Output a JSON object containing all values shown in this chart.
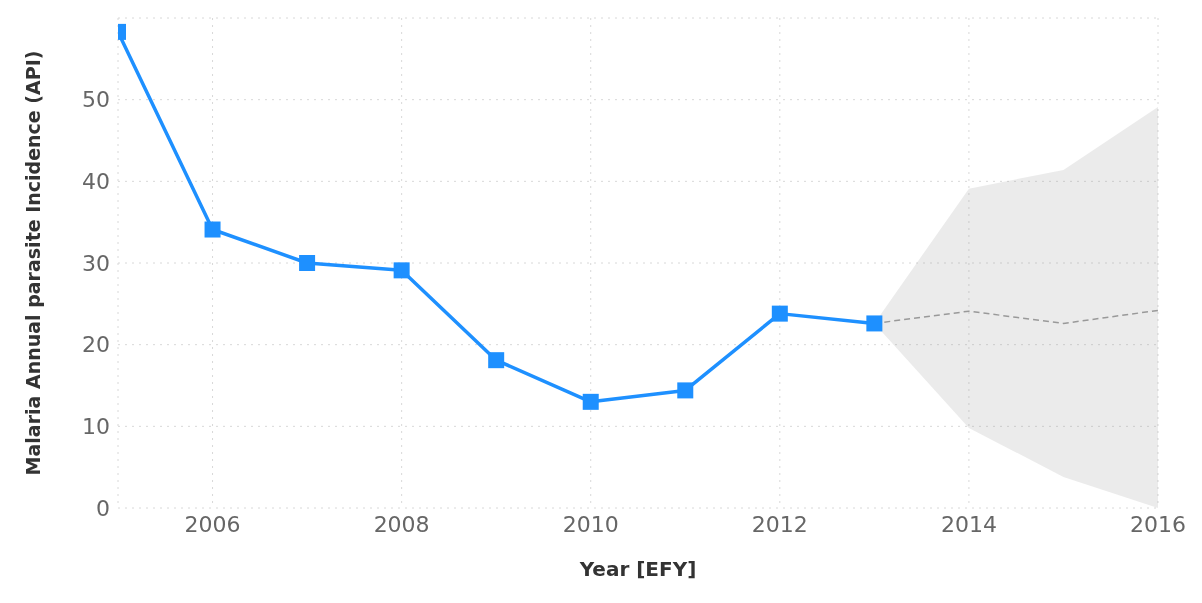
{
  "chart_data": {
    "type": "line",
    "xlabel": "Year [EFY]",
    "ylabel": "Malaria Annual parasite Incidence (API)",
    "xlim": [
      2005,
      2016
    ],
    "xticks": [
      2006,
      2008,
      2010,
      2012,
      2014,
      2016
    ],
    "ylim": [
      0,
      60
    ],
    "yticks": [
      0,
      10,
      20,
      30,
      40,
      50
    ],
    "grid": true,
    "series": [
      {
        "color": "#1e90ff",
        "marker": "square",
        "line_style": "solid",
        "x": [
          2005,
          2006,
          2007,
          2008,
          2009,
          2010,
          2011,
          2012,
          2013
        ],
        "values": [
          58.3,
          34.1,
          30.0,
          29.1,
          18.1,
          13.0,
          14.4,
          23.8,
          22.6
        ]
      },
      {
        "color": "#999999",
        "marker": "none",
        "line_style": "dashed",
        "x": [
          2013,
          2014,
          2015,
          2016
        ],
        "values": [
          22.6,
          24.1,
          22.6,
          24.2
        ],
        "lower": [
          22.6,
          9.8,
          3.8,
          0
        ],
        "upper": [
          22.6,
          39.1,
          41.4,
          49.1
        ]
      }
    ]
  }
}
